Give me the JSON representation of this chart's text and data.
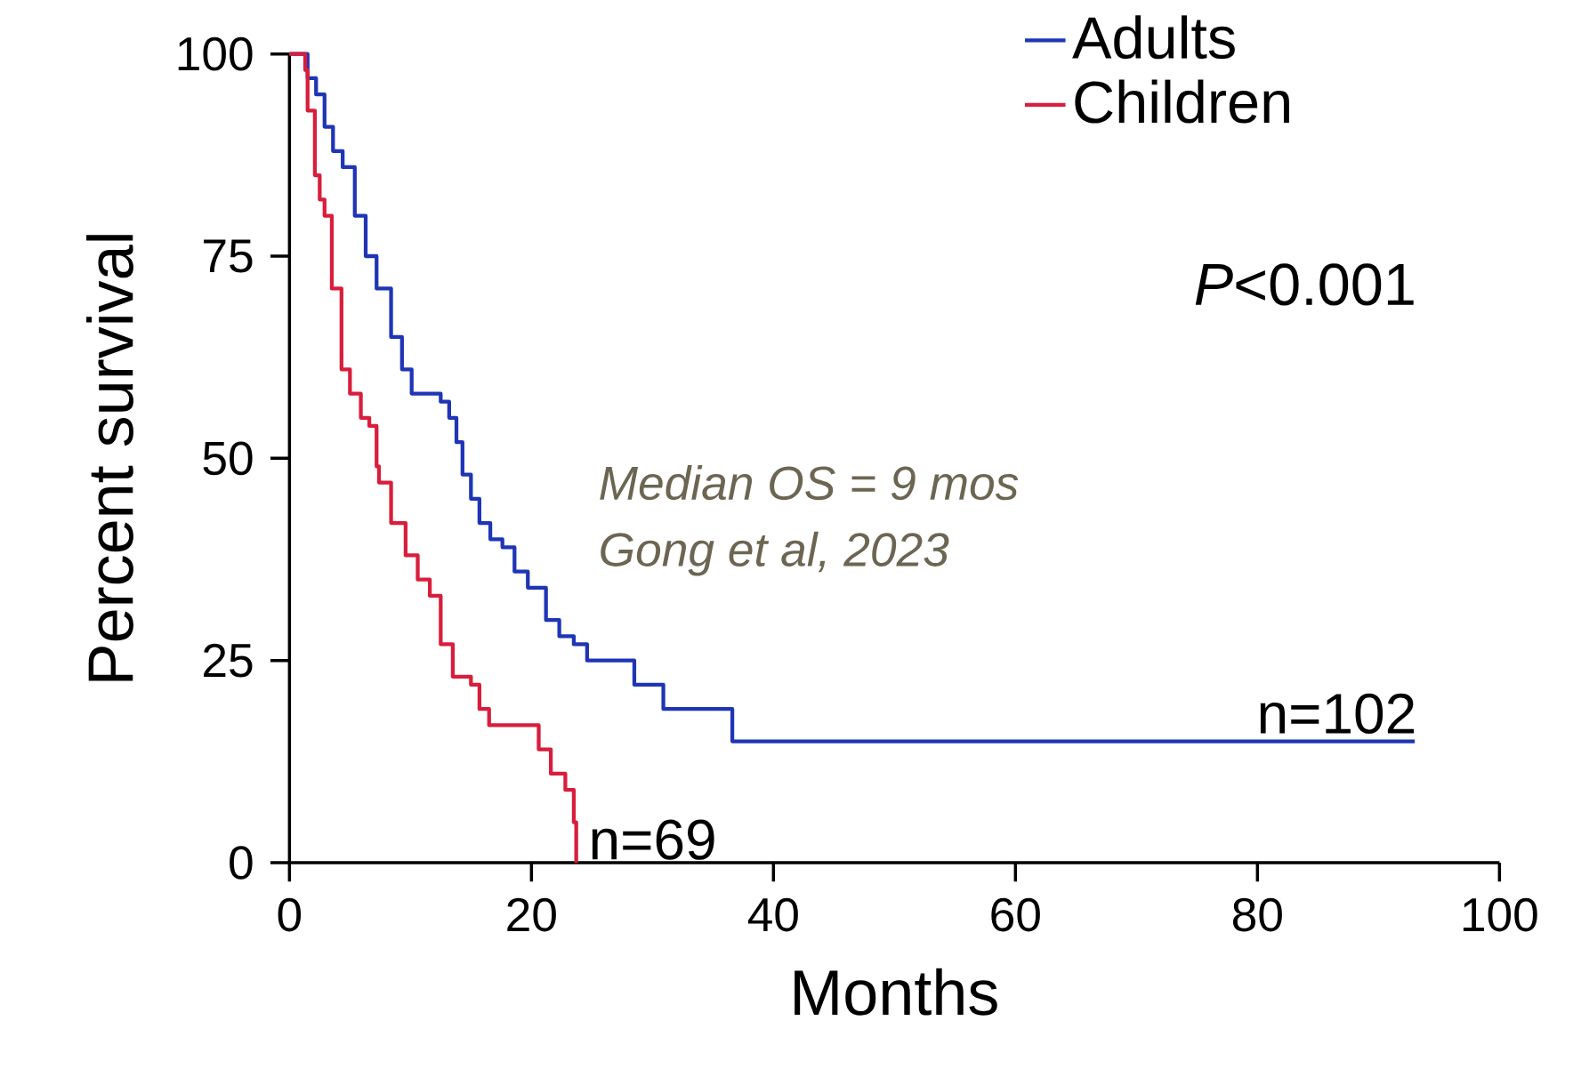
{
  "chart_data": {
    "type": "step",
    "xlabel": "Months",
    "ylabel": "Percent survival",
    "xlim": [
      0,
      100
    ],
    "ylim": [
      0,
      100
    ],
    "xticks": [
      0,
      20,
      40,
      60,
      80,
      100
    ],
    "yticks": [
      0,
      25,
      50,
      75,
      100
    ],
    "legend": "top right",
    "grid": false,
    "marker": "none",
    "line_style": "solid",
    "series": [
      {
        "name": "Adults",
        "color": "#1f35b5",
        "x": [
          0,
          1.5,
          2.2,
          2.9,
          3.6,
          4.4,
          5.4,
          6.3,
          7.2,
          8.4,
          9.3,
          10.1,
          12.5,
          13.2,
          13.8,
          14.3,
          15.0,
          15.7,
          16.6,
          17.6,
          18.6,
          19.7,
          21.2,
          22.3,
          23.5,
          24.6,
          28.5,
          30.9,
          36.6,
          93
        ],
        "values": [
          100,
          97,
          95,
          91,
          88,
          86,
          80,
          75,
          71,
          65,
          61,
          58,
          57,
          55,
          52,
          48,
          45,
          42,
          40,
          39,
          36,
          34,
          30,
          28,
          27,
          25,
          22,
          19,
          15,
          15
        ]
      },
      {
        "name": "Children",
        "color": "#d81e3c",
        "x": [
          0,
          1.3,
          1.5,
          2.1,
          2.5,
          2.9,
          3.5,
          4.3,
          5.0,
          5.9,
          6.6,
          7.2,
          7.4,
          8.4,
          9.6,
          10.6,
          11.6,
          12.5,
          13.5,
          15.0,
          15.7,
          16.5,
          20.6,
          21.6,
          22.8,
          23.5,
          23.7
        ],
        "values": [
          100,
          98,
          93,
          85,
          82,
          80,
          71,
          61,
          58,
          55,
          54,
          49,
          47,
          42,
          38,
          35,
          33,
          27,
          23,
          22,
          19,
          17,
          14,
          11,
          9,
          5,
          0
        ]
      }
    ],
    "annotations": [
      "*P*<0.001",
      "Median OS = 9 mos",
      "Gong et al, 2023",
      {
        "text": "n=102",
        "x": 93,
        "y": 15
      },
      {
        "text": "n=69",
        "x": 23.7,
        "y": 0
      }
    ]
  }
}
